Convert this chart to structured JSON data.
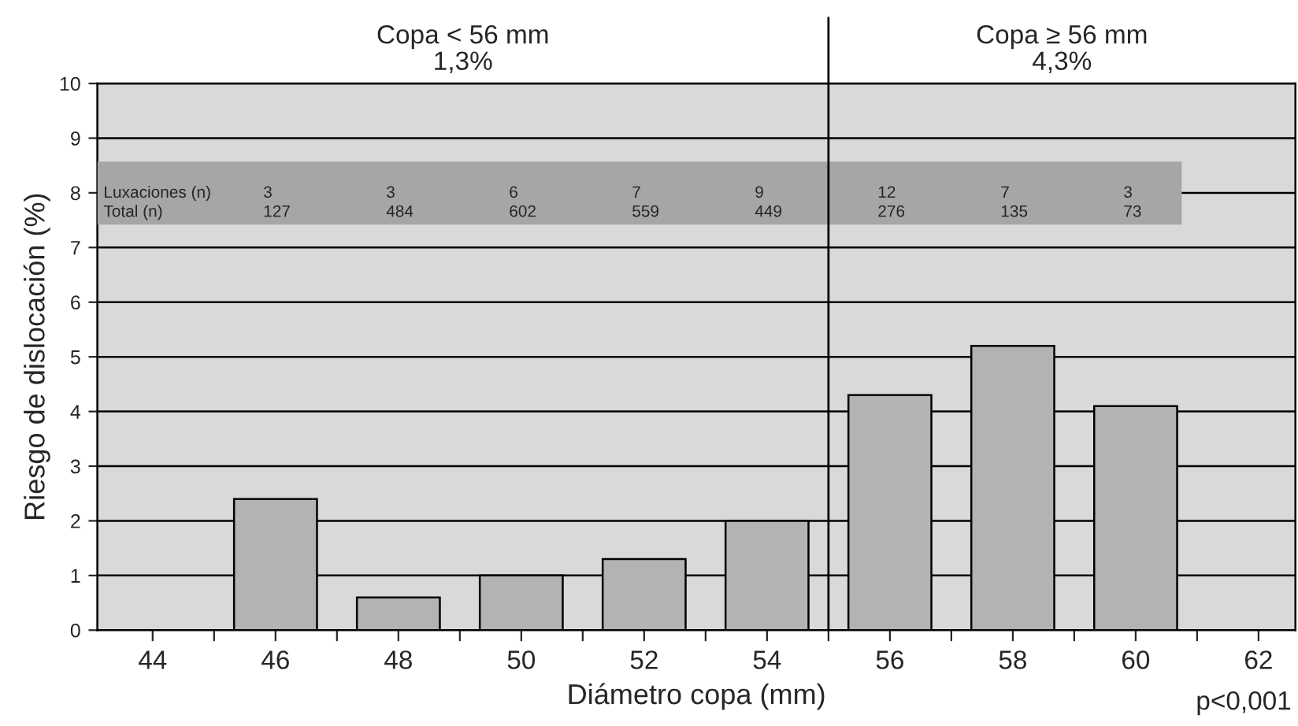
{
  "chart_data": {
    "type": "bar",
    "xlabel": "Diámetro copa (mm)",
    "ylabel": "Riesgo de dislocación (%)",
    "x": [
      46,
      48,
      50,
      52,
      54,
      56,
      58,
      60
    ],
    "values": [
      2.4,
      0.6,
      1.0,
      1.3,
      2.0,
      4.3,
      5.2,
      4.1
    ],
    "color": "#b3b3b3",
    "xlim": [
      43.1,
      62.6
    ],
    "xticks": [
      44,
      {
        "value": 45,
        "label": null
      },
      46,
      {
        "value": 47,
        "label": null
      },
      48,
      {
        "value": 49,
        "label": null
      },
      50,
      {
        "value": 51,
        "label": null
      },
      52,
      {
        "value": 53,
        "label": null
      },
      54,
      {
        "value": 55,
        "label": null
      },
      56,
      {
        "value": 57,
        "label": null
      },
      58,
      {
        "value": 59,
        "label": null
      },
      60,
      {
        "value": 61,
        "label": null
      },
      62
    ],
    "ylim": [
      0,
      10
    ],
    "yticks": [
      0,
      1,
      2,
      3,
      4,
      5,
      6,
      7,
      8,
      9,
      10
    ],
    "grid": "y",
    "ref_lines": [
      {
        "axis": "x",
        "value": 55,
        "color": "#000000"
      }
    ],
    "annotations": [
      "Copa < 56 mm\n1,3%",
      "Copa ≥ 56 mm\n4,3%",
      "Luxaciones (n)",
      "3",
      "3",
      "6",
      "7",
      "9",
      "12",
      "7",
      "3",
      "Total (n)",
      "127",
      "484",
      "602",
      "559",
      "449",
      "276",
      "135",
      "73",
      "p<0,001"
    ]
  }
}
